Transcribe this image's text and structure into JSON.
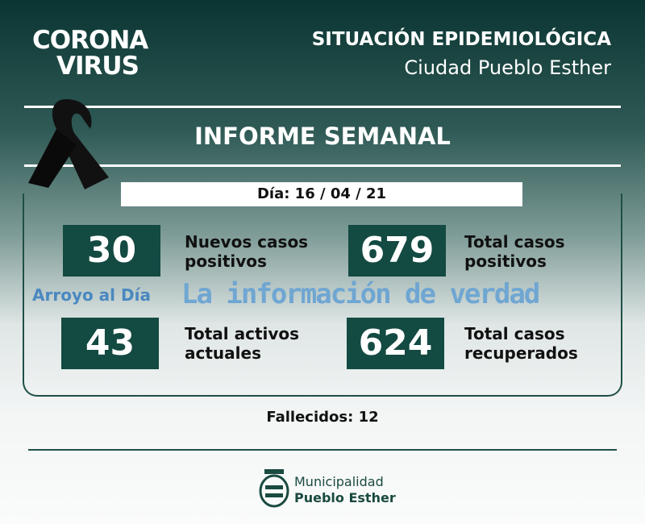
{
  "header": {
    "logo_line1": "CORONA",
    "logo_line2": "VIRUS",
    "title": "SITUACIÓN EPIDEMIOLÓGICA",
    "subtitle": "Ciudad Pueblo Esther"
  },
  "report_title": "INFORME SEMANAL",
  "date_label": "Día: 16 / 04 / 21",
  "stats": [
    {
      "value": "30",
      "label1": "Nuevos casos",
      "label2": "positivos"
    },
    {
      "value": "679",
      "label1": "Total casos",
      "label2": "positivos"
    },
    {
      "value": "43",
      "label1": "Total activos",
      "label2": "actuales"
    },
    {
      "value": "624",
      "label1": "Total casos",
      "label2": "recuperados"
    }
  ],
  "deaths": "Fallecidos: 12",
  "watermark": {
    "brand": "Arroyo al Día",
    "tagline": "La información de verdad"
  },
  "footer": {
    "line1": "Municipalidad",
    "line2": "Pueblo Esther"
  },
  "colors": {
    "primary": "#134a42",
    "header_bg": "#0b3532"
  }
}
